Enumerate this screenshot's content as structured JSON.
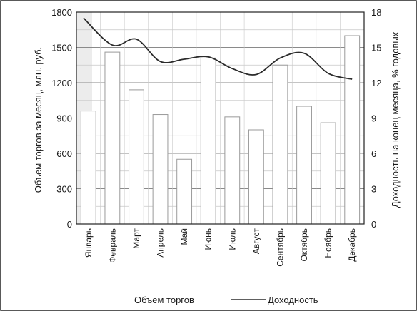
{
  "chart_data": {
    "type": "bar",
    "categories": [
      "Январь",
      "Февраль",
      "Март",
      "Апрель",
      "Май",
      "Июнь",
      "Июль",
      "Август",
      "Сентябрь",
      "Октябрь",
      "Ноябрь",
      "Декабрь"
    ],
    "series": [
      {
        "name": "Объем торгов",
        "kind": "bar",
        "axis": "left",
        "values": [
          960,
          1460,
          1140,
          930,
          550,
          1410,
          910,
          800,
          1350,
          1000,
          860,
          1600
        ]
      },
      {
        "name": "Доходность",
        "kind": "line",
        "axis": "right",
        "values": [
          17.5,
          15.2,
          15.7,
          13.8,
          14.0,
          14.2,
          13.2,
          12.7,
          14.1,
          14.5,
          12.8,
          12.3
        ]
      }
    ],
    "ylabel": "Объем торгов за месяц, млн. руб.",
    "y2label": "Доходность на конец месяца, % годовых",
    "ylim": [
      0,
      1800
    ],
    "y2lim": [
      0,
      18
    ],
    "yticks": [
      "0",
      "300",
      "600",
      "900",
      "1200",
      "1500",
      "1800"
    ],
    "y2ticks": [
      "0",
      "3",
      "6",
      "9",
      "12",
      "15",
      "18"
    ],
    "grid": true,
    "legend": "bottom",
    "colors": {
      "bar_fill": "#ffffff",
      "bar_stroke": "#9a9a9a",
      "line": "#2b2b2b",
      "grid": "#8a8a8a",
      "minor_grid": "#c8c8c8",
      "frame": "#222222",
      "band_left": "#d9d9d9"
    }
  }
}
